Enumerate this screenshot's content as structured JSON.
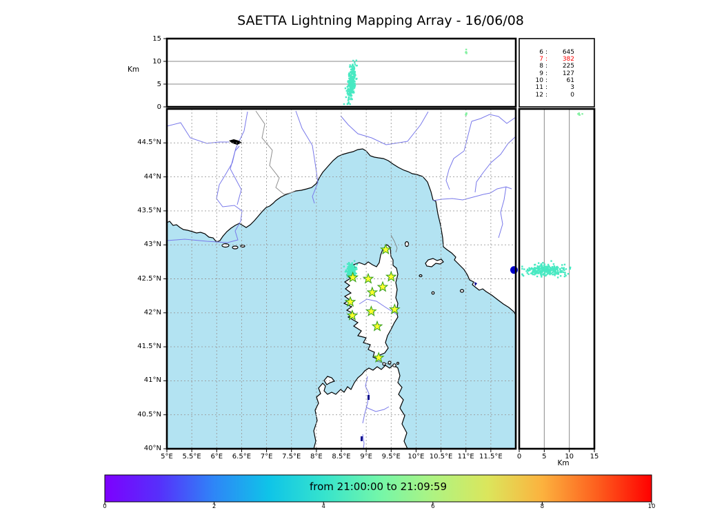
{
  "title": "SAETTA Lightning Mapping Array - 16/06/08",
  "chart_data": {
    "type": "scatter",
    "title": "SAETTA Lightning Mapping Array - 16/06/08",
    "time_window_label": "from 21:00:00 to 21:09:59",
    "panels": {
      "altitude_vs_longitude": {
        "ylabel": "Km",
        "ticks": [
          0,
          5,
          10,
          15
        ],
        "lim": [
          0,
          15
        ],
        "gridlines": [
          5,
          10
        ]
      },
      "map": {
        "lon_lim": [
          5,
          12
        ],
        "lat_lim": [
          40,
          45
        ],
        "lon_ticks": [
          5,
          5.5,
          6,
          6.5,
          7,
          7.5,
          8,
          8.5,
          9,
          9.5,
          10,
          10.5,
          11,
          11.5
        ],
        "lon_tick_labels": [
          "5°E",
          "5.5°E",
          "6°E",
          "6.5°E",
          "7°E",
          "7.5°E",
          "8°E",
          "8.5°E",
          "9°E",
          "9.5°E",
          "10°E",
          "10.5°E",
          "11°E",
          "11.5°E"
        ],
        "lat_ticks": [
          44.5,
          44,
          43.5,
          43,
          42.5,
          42,
          41.5,
          41,
          40.5,
          40
        ],
        "lat_tick_labels": [
          "44.5°N",
          "44°N",
          "43.5°N",
          "43°N",
          "42.5°N",
          "42°N",
          "41.5°N",
          "41°N",
          "40.5°N",
          "40°N"
        ],
        "grid_style": "dashed"
      },
      "altitude_vs_latitude": {
        "xlabel": "Km",
        "ticks": [
          0,
          5,
          10,
          15
        ],
        "lim": [
          0,
          15
        ],
        "gridlines": [
          5,
          10
        ]
      }
    },
    "altitude_counts": [
      {
        "altitude_km": "6",
        "count": "645",
        "color": "#000000"
      },
      {
        "altitude_km": "7",
        "count": "382",
        "color": "#ff0000"
      },
      {
        "altitude_km": "8",
        "count": "225",
        "color": "#000000"
      },
      {
        "altitude_km": "9",
        "count": "127",
        "color": "#000000"
      },
      {
        "altitude_km": "10",
        "count": "61",
        "color": "#000000"
      },
      {
        "altitude_km": "11",
        "count": "3",
        "color": "#000000"
      },
      {
        "altitude_km": "12",
        "count": "0",
        "color": "#000000"
      }
    ],
    "stations_lonlat": [
      [
        9.39,
        42.93
      ],
      [
        8.73,
        42.52
      ],
      [
        9.04,
        42.5
      ],
      [
        9.5,
        42.53
      ],
      [
        9.33,
        42.38
      ],
      [
        9.12,
        42.3
      ],
      [
        8.68,
        42.16
      ],
      [
        9.1,
        42.02
      ],
      [
        9.57,
        42.05
      ],
      [
        8.72,
        41.96
      ],
      [
        9.22,
        41.8
      ],
      [
        9.25,
        41.34
      ]
    ],
    "station_marker": {
      "shape": "star",
      "fill": "#ffff2e",
      "edge": "#3aa21e"
    },
    "lightning_clusters": [
      {
        "name": "main-cell",
        "lon": 8.7,
        "lat": 42.625,
        "lon_sd": 0.045,
        "lat_sd": 0.042,
        "alt_mean_km": 5.2,
        "alt_sd_km": 2.0,
        "alt_range_km": [
          0.6,
          10.2
        ],
        "points": 280,
        "tilt": 0.5,
        "color": "#48e9c2"
      },
      {
        "name": "minor-cell",
        "lon": 11.005,
        "lat": 44.925,
        "lon_sd": 0.012,
        "lat_sd": 0.009,
        "alt_mean_km": 12.1,
        "alt_sd_km": 0.3,
        "alt_range_km": [
          11.5,
          12.6
        ],
        "points": 5,
        "tilt": 0,
        "color": "#85f0a2"
      },
      {
        "name": "edge-point",
        "shape": "circle",
        "lon": 11.965,
        "lat": 42.63,
        "radius_px": 5.5,
        "points": 1,
        "color": "#0000cd"
      }
    ],
    "colorbar": {
      "label": "from 21:00:00 to 21:09:59",
      "ticks": [
        0,
        2,
        4,
        6,
        8,
        10
      ],
      "lim": [
        0,
        10
      ],
      "gradient": [
        {
          "offset": 0,
          "color": "#7d00fe"
        },
        {
          "offset": 0.1,
          "color": "#5630fb"
        },
        {
          "offset": 0.2,
          "color": "#2e86f7"
        },
        {
          "offset": 0.3,
          "color": "#0fc4e8"
        },
        {
          "offset": 0.4,
          "color": "#35e3cd"
        },
        {
          "offset": 0.5,
          "color": "#72f6aa"
        },
        {
          "offset": 0.6,
          "color": "#aef382"
        },
        {
          "offset": 0.7,
          "color": "#dbe65c"
        },
        {
          "offset": 0.8,
          "color": "#fcb23e"
        },
        {
          "offset": 0.9,
          "color": "#fd5f1e"
        },
        {
          "offset": 1,
          "color": "#ff0000"
        }
      ]
    },
    "map_colors": {
      "sea": "#b3e3f2",
      "land": "#ffffff",
      "coast": "#000000",
      "river": "#7878ea",
      "border": "#8f8f8f",
      "grid": "#999999",
      "lake_black": "#000000",
      "lake_blue": "#00008b"
    }
  }
}
